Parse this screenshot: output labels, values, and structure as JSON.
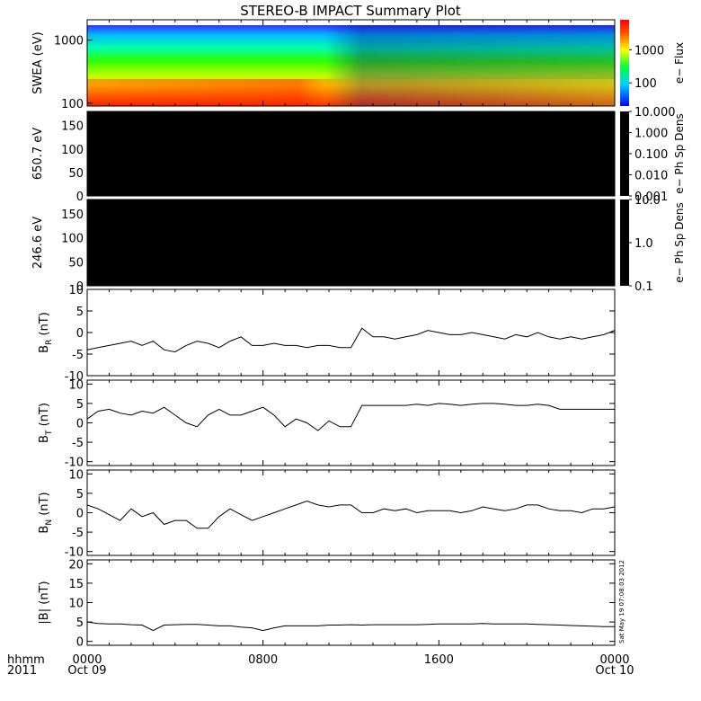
{
  "title": "STEREO-B IMPACT Summary Plot",
  "time_axis": {
    "row1_labels": [
      "0000",
      "0800",
      "1600",
      "0000"
    ],
    "row2_labels": [
      "Oct 09",
      "",
      "",
      "Oct 10"
    ],
    "left_label_1": "hhmm",
    "left_label_2": "2011",
    "hours": [
      0,
      8,
      16,
      24
    ]
  },
  "timestamp": "Sat May 19 07:08:03 2012",
  "chart_data": [
    {
      "type": "heatmap",
      "ylabel": "SWEA (eV)",
      "yscale": "log",
      "ylim": [
        90,
        2100
      ],
      "yticks": [
        {
          "v": 100,
          "label": "100"
        },
        {
          "v": 1000,
          "label": "1000"
        }
      ],
      "colorbar": {
        "label": "e− Flux",
        "scale": "log",
        "range": [
          20,
          8000
        ],
        "ticks": [
          {
            "v": 100,
            "label": "100"
          },
          {
            "v": 1000,
            "label": "1000"
          }
        ],
        "colormap": [
          "#ff0000",
          "#ff8000",
          "#ffff00",
          "#00ff00",
          "#00ffff",
          "#0000ff"
        ]
      }
    },
    {
      "type": "heatmap",
      "ylabel": "650.7 eV",
      "ylim": [
        0,
        180
      ],
      "yticks": [
        0,
        50,
        100,
        150
      ],
      "fill": "#000000",
      "colorbar": {
        "label": "e− Ph Sp Dens",
        "scale": "log",
        "range": [
          0.001,
          10
        ],
        "ticks": [
          {
            "v": 10,
            "label": "10.000"
          },
          {
            "v": 1,
            "label": "1.000"
          },
          {
            "v": 0.1,
            "label": "0.100"
          },
          {
            "v": 0.01,
            "label": "0.010"
          },
          {
            "v": 0.001,
            "label": "0.001"
          }
        ],
        "fill": "#000000"
      }
    },
    {
      "type": "heatmap",
      "ylabel": "246.6 eV",
      "ylim": [
        0,
        180
      ],
      "yticks": [
        0,
        50,
        100,
        150
      ],
      "fill": "#000000",
      "colorbar": {
        "label": "e− Ph Sp Dens",
        "scale": "log",
        "range": [
          0.1,
          10
        ],
        "ticks": [
          {
            "v": 10,
            "label": "10.0"
          },
          {
            "v": 1,
            "label": "1.0"
          },
          {
            "v": 0.1,
            "label": "0.1"
          }
        ],
        "fill": "#000000"
      }
    },
    {
      "type": "line",
      "ylabel": "B_R (nT)",
      "ylabel_main": "B",
      "ylabel_sub": "R",
      "ylabel_unit": " (nT)",
      "ylim": [
        -10,
        10
      ],
      "yticks": [
        -10,
        -5,
        0,
        5,
        10
      ],
      "x_hours": [
        0,
        0.5,
        1,
        1.5,
        2,
        2.5,
        3,
        3.5,
        4,
        4.5,
        5,
        5.5,
        6,
        6.5,
        7,
        7.5,
        8,
        8.5,
        9,
        9.5,
        10,
        10.5,
        11,
        11.5,
        12,
        12.5,
        13,
        13.5,
        14,
        14.5,
        15,
        15.5,
        16,
        16.5,
        17,
        17.5,
        18,
        18.5,
        19,
        19.5,
        20,
        20.5,
        21,
        21.5,
        22,
        22.5,
        23,
        23.5,
        24
      ],
      "values": [
        -4,
        -3.5,
        -3,
        -2.5,
        -2,
        -3,
        -2,
        -4,
        -4.5,
        -3,
        -2,
        -2.5,
        -3.5,
        -2,
        -1,
        -3,
        -3,
        -2.5,
        -3,
        -3,
        -3.5,
        -3,
        -3,
        -3.5,
        -3.5,
        1,
        -1,
        -1,
        -1.5,
        -1,
        -0.5,
        0.5,
        0,
        -0.5,
        -0.5,
        0,
        -0.5,
        -1,
        -1.5,
        -0.5,
        -1,
        0,
        -1,
        -1.5,
        -1,
        -1.5,
        -1,
        -0.5,
        0.5
      ]
    },
    {
      "type": "line",
      "ylabel": "B_T (nT)",
      "ylabel_main": "B",
      "ylabel_sub": "T",
      "ylabel_unit": " (nT)",
      "ylim": [
        -11,
        11
      ],
      "yticks": [
        -10,
        -5,
        0,
        5,
        10
      ],
      "x_hours": [
        0,
        0.5,
        1,
        1.5,
        2,
        2.5,
        3,
        3.5,
        4,
        4.5,
        5,
        5.5,
        6,
        6.5,
        7,
        7.5,
        8,
        8.5,
        9,
        9.5,
        10,
        10.5,
        11,
        11.5,
        12,
        12.5,
        13,
        13.5,
        14,
        14.5,
        15,
        15.5,
        16,
        16.5,
        17,
        17.5,
        18,
        18.5,
        19,
        19.5,
        20,
        20.5,
        21,
        21.5,
        22,
        22.5,
        23,
        23.5,
        24
      ],
      "values": [
        1,
        3,
        3.5,
        2.5,
        2,
        3,
        2.5,
        4,
        2,
        0,
        -1,
        2,
        3.5,
        2,
        2,
        3,
        4,
        2,
        -1,
        1,
        0,
        -2,
        0.5,
        -1,
        -1,
        4.5,
        4.5,
        4.5,
        4.5,
        4.5,
        4.8,
        4.5,
        5,
        4.8,
        4.5,
        4.8,
        5,
        5,
        4.8,
        4.5,
        4.5,
        4.8,
        4.5,
        3.5,
        3.5,
        3.5,
        3.5,
        3.5,
        3.5
      ]
    },
    {
      "type": "line",
      "ylabel": "B_N (nT)",
      "ylabel_main": "B",
      "ylabel_sub": "N",
      "ylabel_unit": " (nT)",
      "ylim": [
        -11,
        11
      ],
      "yticks": [
        -10,
        -5,
        0,
        5,
        10
      ],
      "x_hours": [
        0,
        0.5,
        1,
        1.5,
        2,
        2.5,
        3,
        3.5,
        4,
        4.5,
        5,
        5.5,
        6,
        6.5,
        7,
        7.5,
        8,
        8.5,
        9,
        9.5,
        10,
        10.5,
        11,
        11.5,
        12,
        12.5,
        13,
        13.5,
        14,
        14.5,
        15,
        15.5,
        16,
        16.5,
        17,
        17.5,
        18,
        18.5,
        19,
        19.5,
        20,
        20.5,
        21,
        21.5,
        22,
        22.5,
        23,
        23.5,
        24
      ],
      "values": [
        2,
        1,
        -0.5,
        -2,
        1,
        -1,
        0,
        -3,
        -2,
        -2,
        -4,
        -4,
        -1,
        1,
        -0.5,
        -2,
        -1,
        0,
        1,
        2,
        3,
        2,
        1.5,
        2,
        2,
        0,
        0,
        1,
        0.5,
        1,
        0,
        0.5,
        0.5,
        0.5,
        0,
        0.5,
        1.5,
        1,
        0.5,
        1,
        2,
        2,
        1,
        0.5,
        0.5,
        0,
        1,
        1,
        1.5
      ]
    },
    {
      "type": "line",
      "ylabel": "|B| (nT)",
      "ylabel_main": "|B|",
      "ylabel_sub": "",
      "ylabel_unit": " (nT)",
      "ylim": [
        -1,
        21
      ],
      "yticks": [
        0,
        5,
        10,
        15,
        20
      ],
      "x_hours": [
        0,
        0.5,
        1,
        1.5,
        2,
        2.5,
        3,
        3.5,
        4,
        4.5,
        5,
        5.5,
        6,
        6.5,
        7,
        7.5,
        8,
        8.5,
        9,
        9.5,
        10,
        10.5,
        11,
        11.5,
        12,
        12.5,
        13,
        13.5,
        14,
        14.5,
        15,
        15.5,
        16,
        16.5,
        17,
        17.5,
        18,
        18.5,
        19,
        19.5,
        20,
        20.5,
        21,
        21.5,
        22,
        22.5,
        23,
        23.5,
        24
      ],
      "values": [
        5,
        4.6,
        4.5,
        4.5,
        4.3,
        4.2,
        2.8,
        4.2,
        4.3,
        4.4,
        4.4,
        4.2,
        4,
        4,
        3.7,
        3.5,
        2.8,
        3.5,
        4,
        4,
        4,
        4,
        4.2,
        4.2,
        4.3,
        4.2,
        4.3,
        4.3,
        4.3,
        4.3,
        4.3,
        4.4,
        4.5,
        4.5,
        4.5,
        4.5,
        4.6,
        4.5,
        4.5,
        4.5,
        4.5,
        4.4,
        4.3,
        4.2,
        4.1,
        4,
        3.9,
        3.8,
        3.8
      ]
    }
  ]
}
